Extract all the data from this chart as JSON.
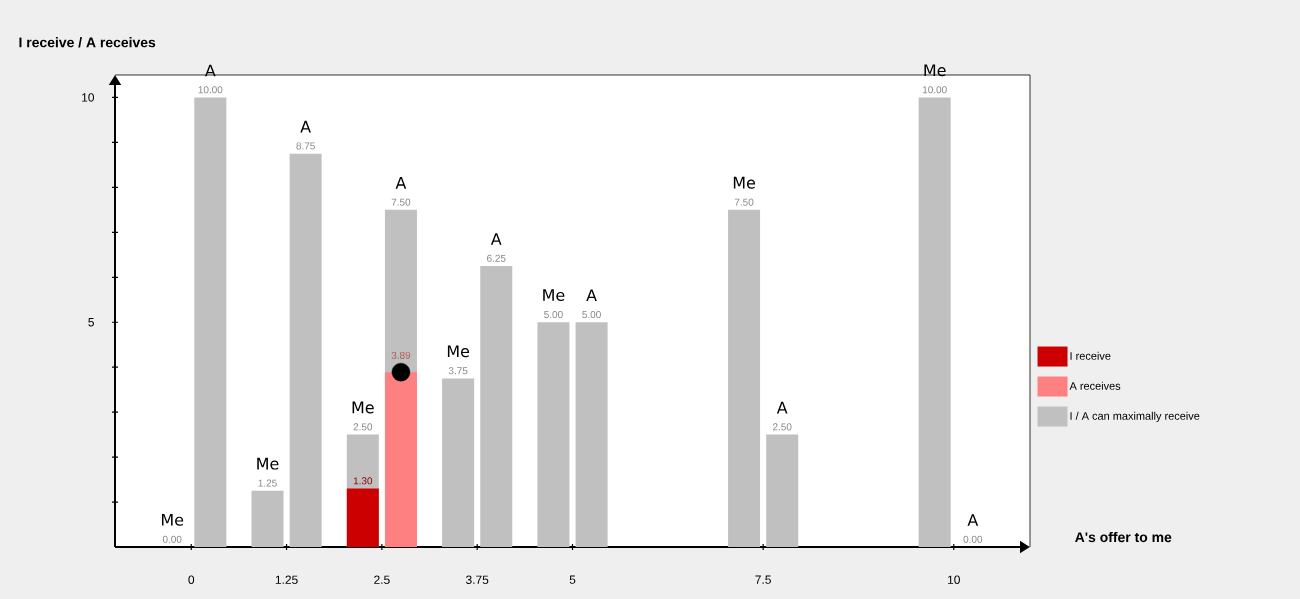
{
  "chart_data": {
    "type": "bar",
    "xlabel": "A's offer to me",
    "ylabel": "I receive / A receives",
    "xlim": [
      -1,
      11
    ],
    "xticks": [
      0,
      1.25,
      2.5,
      3.75,
      5,
      7.5,
      10
    ],
    "ylim": [
      0,
      10.5
    ],
    "yticks": [
      {
        "value": 1,
        "label": null
      },
      {
        "value": 2,
        "label": null
      },
      {
        "value": 3,
        "label": null
      },
      {
        "value": 4,
        "label": null
      },
      5,
      {
        "value": 6,
        "label": null
      },
      {
        "value": 7,
        "label": null
      },
      {
        "value": 8,
        "label": null
      },
      {
        "value": 9,
        "label": null
      },
      10
    ],
    "legend": "right",
    "grid": false,
    "series": [
      {
        "name": "I receive",
        "color": "#cc0000",
        "x": [
          2.25
        ],
        "values": [
          1.3
        ],
        "value_labels": [
          "1.30"
        ]
      },
      {
        "name": "A receives",
        "color": "#ff8080",
        "x": [
          2.75
        ],
        "values": [
          3.89
        ],
        "value_labels": [
          "3.89"
        ]
      },
      {
        "name": "I / A can maximally receive",
        "color": "#c0c0c0",
        "x": [
          -0.25,
          1.0,
          2.25,
          3.5,
          4.75,
          7.25,
          9.75
        ],
        "values": [
          0,
          1.25,
          2.5,
          3.75,
          5,
          7.5,
          10
        ],
        "value_labels": [
          "0.00",
          "1.25",
          "2.50",
          "3.75",
          "5.00",
          "7.50",
          "10.00"
        ]
      },
      {
        "color": "#c0c0c0",
        "x": [
          0.25,
          1.5,
          2.75,
          4.0,
          5.25,
          7.75,
          10.25
        ],
        "values": [
          10,
          8.75,
          7.5,
          6.25,
          5,
          2.5,
          0
        ],
        "value_labels": [
          "10.00",
          "8.75",
          "7.50",
          "6.25",
          "5.00",
          "2.50",
          "0.00"
        ]
      },
      {
        "type": "scatter",
        "marker": "circle",
        "color": "#000000",
        "x": [
          2.75
        ],
        "values": [
          3.89
        ]
      }
    ],
    "annotations": [
      {
        "text": "Me",
        "x": -0.25,
        "y": 0
      },
      {
        "text": "A",
        "x": 0.25,
        "y": 10
      },
      {
        "text": "Me",
        "x": 1.0,
        "y": 1.25
      },
      {
        "text": "A",
        "x": 1.5,
        "y": 8.75
      },
      {
        "text": "Me",
        "x": 2.25,
        "y": 2.5
      },
      {
        "text": "A",
        "x": 2.75,
        "y": 7.5
      },
      {
        "text": "Me",
        "x": 3.5,
        "y": 3.75
      },
      {
        "text": "A",
        "x": 4.0,
        "y": 6.25
      },
      {
        "text": "Me",
        "x": 4.75,
        "y": 5
      },
      {
        "text": "A",
        "x": 5.25,
        "y": 5
      },
      {
        "text": "Me",
        "x": 7.25,
        "y": 7.5
      },
      {
        "text": "A",
        "x": 7.75,
        "y": 2.5
      },
      {
        "text": "Me",
        "x": 9.75,
        "y": 10
      },
      {
        "text": "A",
        "x": 10.25,
        "y": 0
      }
    ]
  }
}
